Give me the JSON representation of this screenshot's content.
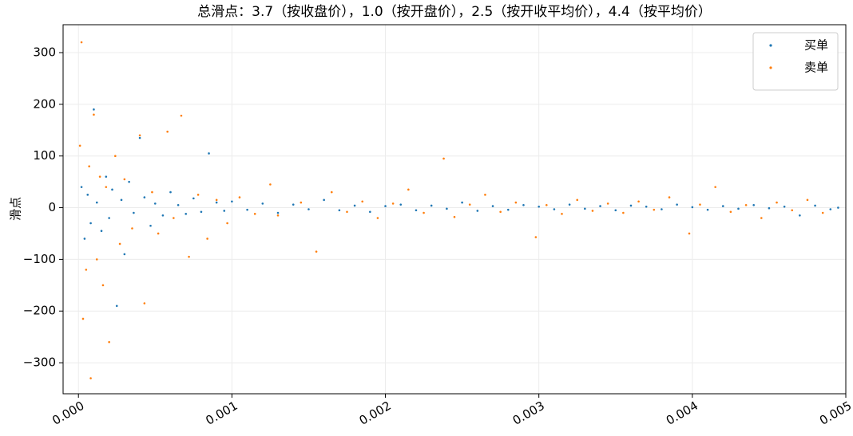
{
  "chart_data": {
    "type": "scatter",
    "title": "总滑点：3.7（按收盘价），1.0（按开盘价），2.5（按开收平均价），4.4（按平均价）",
    "y_label": "滑点",
    "xlim": [
      -0.0001,
      0.005
    ],
    "ylim": [
      -360,
      354
    ],
    "xticks": [
      {
        "value": 0,
        "label": "0.000"
      },
      {
        "value": 0.001,
        "label": "0.001"
      },
      {
        "value": 0.002,
        "label": "0.002"
      },
      {
        "value": 0.003,
        "label": "0.003"
      },
      {
        "value": 0.004,
        "label": "0.004"
      },
      {
        "value": 0.005,
        "label": "0.005"
      }
    ],
    "yticks": [
      {
        "value": -300,
        "label": "−300"
      },
      {
        "value": -200,
        "label": "−200"
      },
      {
        "value": -100,
        "label": "−100"
      },
      0,
      100,
      200,
      300
    ],
    "grid": true,
    "legend": "upper right",
    "series": [
      {
        "name": "买单",
        "color": "#1f77b4",
        "x": [
          2e-05,
          4e-05,
          6e-05,
          8e-05,
          0.0001,
          0.00012,
          0.00015,
          0.00018,
          0.0002,
          0.00022,
          0.00025,
          0.00028,
          0.0003,
          0.00033,
          0.00036,
          0.0004,
          0.00043,
          0.00047,
          0.0005,
          0.00055,
          0.0006,
          0.00065,
          0.0007,
          0.00075,
          0.0008,
          0.00085,
          0.0009,
          0.00095,
          0.001,
          0.0011,
          0.0012,
          0.0013,
          0.0014,
          0.0015,
          0.0016,
          0.0017,
          0.0018,
          0.0019,
          0.002,
          0.0021,
          0.0022,
          0.0023,
          0.0024,
          0.0025,
          0.0026,
          0.0027,
          0.0028,
          0.0029,
          0.003,
          0.0031,
          0.0032,
          0.0033,
          0.0034,
          0.0035,
          0.0036,
          0.0037,
          0.0038,
          0.0039,
          0.004,
          0.0041,
          0.0042,
          0.0043,
          0.0044,
          0.0045,
          0.0046,
          0.0047,
          0.0048,
          0.0049,
          0.00495
        ],
        "values": [
          40,
          -60,
          25,
          -30,
          190,
          10,
          -45,
          60,
          -20,
          35,
          -190,
          15,
          -90,
          50,
          -10,
          135,
          20,
          -35,
          8,
          -15,
          30,
          5,
          -12,
          18,
          -8,
          105,
          10,
          -6,
          12,
          -4,
          8,
          -10,
          6,
          -3,
          15,
          -5,
          4,
          -8,
          3,
          6,
          -5,
          4,
          -2,
          10,
          -6,
          3,
          -4,
          5,
          2,
          -3,
          6,
          -2,
          3,
          -5,
          4,
          2,
          -3,
          6,
          1,
          -4,
          3,
          -2,
          5,
          -1,
          2,
          -15,
          4,
          -3,
          0
        ]
      },
      {
        "name": "卖单",
        "color": "#ff7f0e",
        "x": [
          1e-05,
          2e-05,
          3e-05,
          5e-05,
          7e-05,
          8e-05,
          0.0001,
          0.00012,
          0.00014,
          0.00016,
          0.00018,
          0.0002,
          0.00024,
          0.00027,
          0.0003,
          0.00035,
          0.0004,
          0.00043,
          0.00048,
          0.00052,
          0.00058,
          0.00062,
          0.00067,
          0.00072,
          0.00078,
          0.00084,
          0.0009,
          0.00097,
          0.00105,
          0.00115,
          0.00125,
          0.0013,
          0.00145,
          0.00155,
          0.00165,
          0.00175,
          0.00185,
          0.00195,
          0.00205,
          0.00215,
          0.00225,
          0.00238,
          0.00245,
          0.00255,
          0.00265,
          0.00275,
          0.00285,
          0.00298,
          0.00305,
          0.00315,
          0.00325,
          0.00335,
          0.00345,
          0.00355,
          0.00365,
          0.00375,
          0.00385,
          0.00398,
          0.00405,
          0.00415,
          0.00425,
          0.00435,
          0.00445,
          0.00455,
          0.00465,
          0.00475,
          0.00485
        ],
        "values": [
          120,
          320,
          -215,
          -120,
          80,
          -330,
          180,
          -100,
          60,
          -150,
          40,
          -260,
          100,
          -70,
          55,
          -40,
          140,
          -185,
          30,
          -50,
          147,
          -20,
          178,
          -95,
          25,
          -60,
          15,
          -30,
          20,
          -12,
          45,
          -15,
          10,
          -85,
          30,
          -8,
          12,
          -20,
          8,
          35,
          -10,
          95,
          -18,
          6,
          25,
          -8,
          10,
          -57,
          5,
          -12,
          15,
          -6,
          8,
          -10,
          12,
          -4,
          20,
          -50,
          6,
          40,
          -8,
          5,
          -20,
          10,
          -5,
          15,
          -10
        ]
      }
    ]
  }
}
